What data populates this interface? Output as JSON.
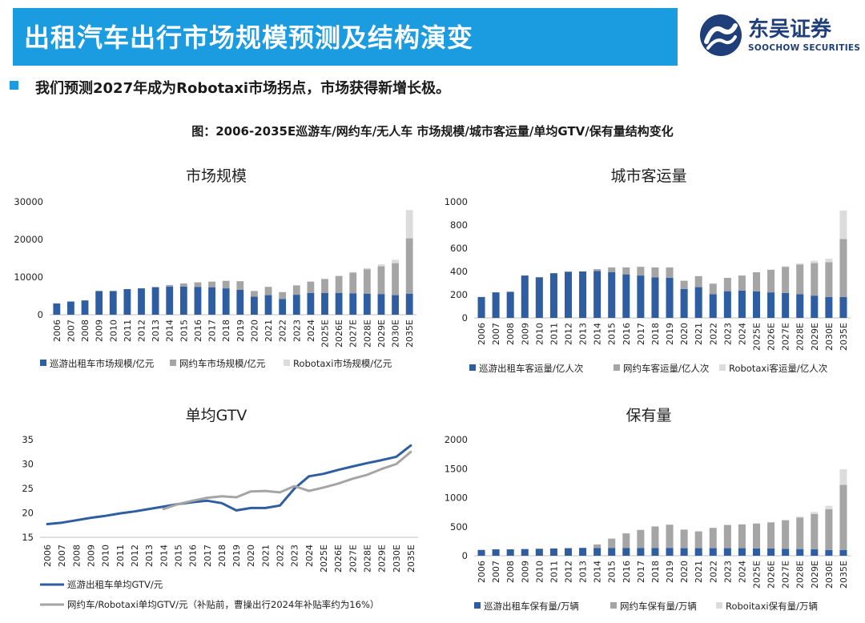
{
  "header": {
    "title": "出租汽车出行市场规模预测及结构演变",
    "logo_cn": "东吴证券",
    "logo_en": "SOOCHOW SECURITIES"
  },
  "subtitle": "我们预测2027年成为Robotaxi市场拐点，市场获得新增长极。",
  "figure_title": "图：2006-2035E巡游车/网约车/无人车 市场规模/城市客运量/单均GTV/保有量结构变化",
  "colors": {
    "dark_blue": "#2e5ea1",
    "gray": "#a5a5a5",
    "light_gray": "#dcdcdc",
    "accent": "#1b9be0"
  },
  "chart_data": [
    {
      "type": "bar",
      "stacked": true,
      "title": "市场规模",
      "categories": [
        "2006",
        "2007",
        "2008",
        "2009",
        "2010",
        "2011",
        "2012",
        "2013",
        "2014",
        "2015",
        "2016",
        "2017",
        "2018",
        "2019",
        "2020",
        "2021",
        "2022",
        "2023",
        "2024",
        "2025E",
        "2026E",
        "2027E",
        "2028E",
        "2029E",
        "2030E",
        "2035E"
      ],
      "ylim": [
        0,
        30000
      ],
      "yticks": [
        "0",
        "10000",
        "20000",
        "30000"
      ],
      "series": [
        {
          "name": "巡游出租车市场规模/亿元",
          "color": "#2e5ea1",
          "values": [
            3000,
            3500,
            3800,
            6300,
            6300,
            6800,
            7000,
            7300,
            7500,
            7500,
            7400,
            7300,
            7000,
            6600,
            4800,
            5200,
            4200,
            5300,
            5800,
            5800,
            5800,
            5700,
            5600,
            5500,
            5200,
            5600
          ]
        },
        {
          "name": "网约车市场规模/亿元",
          "color": "#a5a5a5",
          "values": [
            0,
            0,
            0,
            0,
            0,
            0,
            0,
            100,
            400,
            800,
            1200,
            1500,
            2000,
            2300,
            1500,
            2200,
            1800,
            2500,
            3000,
            3700,
            4500,
            5500,
            6500,
            7400,
            8500,
            14700
          ]
        },
        {
          "name": "Robotaxi市场规模/亿元",
          "color": "#dcdcdc",
          "values": [
            0,
            0,
            0,
            0,
            0,
            0,
            0,
            0,
            0,
            0,
            0,
            0,
            0,
            0,
            0,
            0,
            0,
            0,
            0,
            0,
            0,
            150,
            300,
            500,
            900,
            7500
          ]
        }
      ]
    },
    {
      "type": "bar",
      "stacked": true,
      "title": "城市客运量",
      "categories": [
        "2006",
        "2007",
        "2008",
        "2009",
        "2010",
        "2011",
        "2012",
        "2013",
        "2014",
        "2015",
        "2016",
        "2017",
        "2018",
        "2019",
        "2020",
        "2021",
        "2022",
        "2023",
        "2024",
        "2025E",
        "2026E",
        "2027E",
        "2028E",
        "2029E",
        "2030E",
        "2035E"
      ],
      "ylim": [
        0,
        1000
      ],
      "yticks": [
        "0",
        "200",
        "400",
        "600",
        "800",
        "1000"
      ],
      "series": [
        {
          "name": "巡游出租车客运量/亿人次",
          "color": "#2e5ea1",
          "values": [
            180,
            220,
            225,
            365,
            350,
            385,
            398,
            400,
            405,
            395,
            375,
            365,
            350,
            345,
            250,
            265,
            205,
            230,
            235,
            228,
            220,
            215,
            205,
            192,
            180,
            180
          ]
        },
        {
          "name": "网约车客运量/亿人次",
          "color": "#a5a5a5",
          "values": [
            0,
            0,
            0,
            0,
            0,
            0,
            0,
            0,
            15,
            40,
            60,
            75,
            85,
            90,
            70,
            95,
            90,
            115,
            130,
            165,
            195,
            225,
            255,
            280,
            300,
            500
          ]
        },
        {
          "name": "Robotaxi客运量/亿人次",
          "color": "#dcdcdc",
          "values": [
            0,
            0,
            0,
            0,
            0,
            0,
            0,
            0,
            0,
            0,
            0,
            0,
            0,
            0,
            0,
            0,
            0,
            0,
            0,
            0,
            0,
            5,
            10,
            20,
            30,
            245
          ]
        }
      ]
    },
    {
      "type": "line",
      "title": "单均GTV",
      "categories": [
        "2006",
        "2007",
        "2008",
        "2009",
        "2010",
        "2011",
        "2012",
        "2013",
        "2014",
        "2015",
        "2016",
        "2017",
        "2018",
        "2019",
        "2020",
        "2021",
        "2022",
        "2023",
        "2024",
        "2025E",
        "2026E",
        "2027E",
        "2028E",
        "2029E",
        "2030E",
        "2035E"
      ],
      "ylim": [
        15,
        35
      ],
      "yticks": [
        "15",
        "20",
        "25",
        "30",
        "35"
      ],
      "series": [
        {
          "name": "巡游出租车单均GTV/元",
          "color": "#2e5ea1",
          "values": [
            17.7,
            18.0,
            18.5,
            19.0,
            19.4,
            19.9,
            20.3,
            20.8,
            21.3,
            21.8,
            22.2,
            22.5,
            22.0,
            20.5,
            21.0,
            21.0,
            21.5,
            25.0,
            27.5,
            28.0,
            28.8,
            29.5,
            30.2,
            30.8,
            31.5,
            33.8
          ]
        },
        {
          "name": "网约车/Robotaxi单均GTV/元（补贴前，曹操出行2024年补贴率约为16%）",
          "color": "#a5a5a5",
          "values": [
            null,
            null,
            null,
            null,
            null,
            null,
            null,
            null,
            20.8,
            21.8,
            22.5,
            23.1,
            23.4,
            23.2,
            24.4,
            24.5,
            24.2,
            25.5,
            24.5,
            25.2,
            26.0,
            27.0,
            27.8,
            29.0,
            30.0,
            32.5
          ]
        }
      ]
    },
    {
      "type": "bar",
      "stacked": true,
      "title": "保有量",
      "categories": [
        "2006",
        "2007",
        "2008",
        "2009",
        "2010",
        "2011",
        "2012",
        "2013",
        "2014",
        "2015",
        "2016",
        "2017",
        "2018",
        "2019",
        "2020",
        "2021",
        "2022",
        "2023",
        "2024",
        "2025E",
        "2026E",
        "2027E",
        "2028E",
        "2029E",
        "2030E",
        "2035E"
      ],
      "ylim": [
        0,
        2000
      ],
      "yticks": [
        "0",
        "500",
        "1000",
        "1500",
        "2000"
      ],
      "series": [
        {
          "name": "巡游出租车保有量/万辆",
          "color": "#2e5ea1",
          "values": [
            100,
            110,
            110,
            115,
            120,
            125,
            130,
            135,
            135,
            135,
            135,
            135,
            135,
            135,
            130,
            130,
            130,
            130,
            130,
            125,
            125,
            120,
            115,
            110,
            100,
            100
          ]
        },
        {
          "name": "网约车保有量/万辆",
          "color": "#a5a5a5",
          "values": [
            0,
            0,
            0,
            0,
            0,
            0,
            0,
            0,
            60,
            160,
            250,
            310,
            370,
            400,
            320,
            290,
            350,
            400,
            410,
            430,
            450,
            490,
            540,
            610,
            700,
            1120
          ]
        },
        {
          "name": "Roboitaxi保有量/万辆",
          "color": "#dcdcdc",
          "values": [
            0,
            0,
            0,
            0,
            0,
            0,
            0,
            0,
            0,
            0,
            0,
            0,
            0,
            0,
            0,
            0,
            0,
            0,
            0,
            0,
            0,
            10,
            20,
            35,
            60,
            270
          ]
        }
      ]
    }
  ]
}
